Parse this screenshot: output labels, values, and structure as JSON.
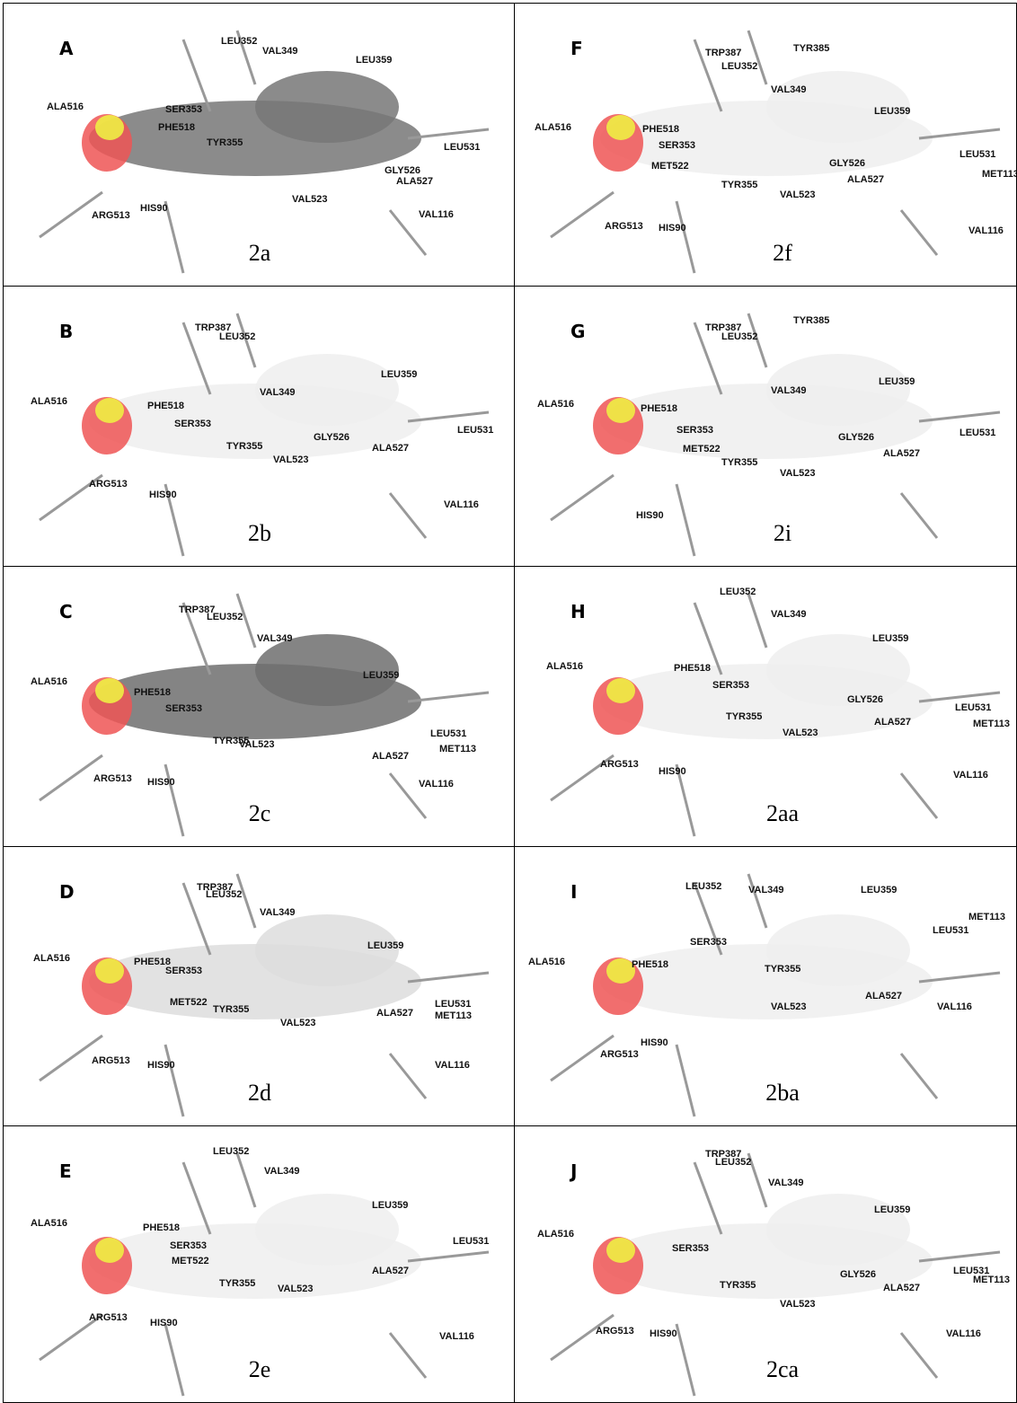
{
  "panels": [
    {
      "letter": "A",
      "compound": "2a",
      "residues": [
        "ALA516",
        "LEU352",
        "VAL349",
        "LEU359",
        "SER353",
        "PHE518",
        "TYR355",
        "LEU531",
        "GLY526",
        "ALA527",
        "VAL523",
        "HIS90",
        "ARG513",
        "VAL116"
      ]
    },
    {
      "letter": "F",
      "compound": "2f",
      "residues": [
        "TYR385",
        "TRP387",
        "LEU352",
        "VAL349",
        "LEU359",
        "ALA516",
        "PHE518",
        "SER353",
        "MET522",
        "LEU531",
        "MET113",
        "GLY526",
        "TYR355",
        "VAL523",
        "ALA527",
        "ARG513",
        "HIS90",
        "VAL116"
      ]
    },
    {
      "letter": "B",
      "compound": "2b",
      "residues": [
        "TRP387",
        "LEU352",
        "VAL349",
        "LEU359",
        "ALA516",
        "PHE518",
        "SER353",
        "LEU531",
        "GLY526",
        "TYR355",
        "ALA527",
        "VAL523",
        "ARG513",
        "HIS90",
        "VAL116"
      ]
    },
    {
      "letter": "G",
      "compound": "2i",
      "residues": [
        "TYR385",
        "TRP387",
        "LEU352",
        "VAL349",
        "LEU359",
        "ALA516",
        "PHE518",
        "SER353",
        "MET522",
        "GLY526",
        "LEU531",
        "ALA527",
        "TYR355",
        "VAL523",
        "HIS90"
      ]
    },
    {
      "letter": "C",
      "compound": "2c",
      "residues": [
        "TRP387",
        "LEU352",
        "VAL349",
        "LEU359",
        "ALA516",
        "PHE518",
        "SER353",
        "LEU531",
        "MET113",
        "TYR355",
        "VAL523",
        "ALA527",
        "ARG513",
        "HIS90",
        "VAL116"
      ]
    },
    {
      "letter": "H",
      "compound": "2aa",
      "residues": [
        "LEU352",
        "VAL349",
        "LEU359",
        "ALA516",
        "PHE518",
        "SER353",
        "GLY526",
        "LEU531",
        "MET113",
        "TYR355",
        "ALA527",
        "VAL523",
        "ARG513",
        "HIS90",
        "VAL116"
      ]
    },
    {
      "letter": "D",
      "compound": "2d",
      "residues": [
        "TRP387",
        "LEU352",
        "VAL349",
        "LEU359",
        "ALA516",
        "PHE518",
        "SER353",
        "MET522",
        "LEU531",
        "MET113",
        "TYR355",
        "ALA527",
        "VAL523",
        "ARG513",
        "HIS90",
        "VAL116"
      ]
    },
    {
      "letter": "I",
      "compound": "2ba",
      "residues": [
        "LEU352",
        "VAL349",
        "LEU359",
        "MET113",
        "SER353",
        "LEU531",
        "ALA516",
        "PHE518",
        "TYR355",
        "ALA527",
        "VAL116",
        "VAL523",
        "ARG513",
        "HIS90"
      ]
    },
    {
      "letter": "E",
      "compound": "2e",
      "residues": [
        "LEU352",
        "VAL349",
        "LEU359",
        "ALA516",
        "PHE518",
        "SER353",
        "LEU531",
        "MET522",
        "ALA527",
        "TYR355",
        "VAL523",
        "ARG513",
        "HIS90",
        "VAL116"
      ]
    },
    {
      "letter": "J",
      "compound": "2ca",
      "residues": [
        "TRP387",
        "LEU352",
        "VAL349",
        "LEU359",
        "ALA516",
        "SER353",
        "LEU531",
        "GLY526",
        "MET113",
        "TYR355",
        "ALA527",
        "VAL523",
        "ARG513",
        "HIS90",
        "VAL116"
      ]
    }
  ]
}
